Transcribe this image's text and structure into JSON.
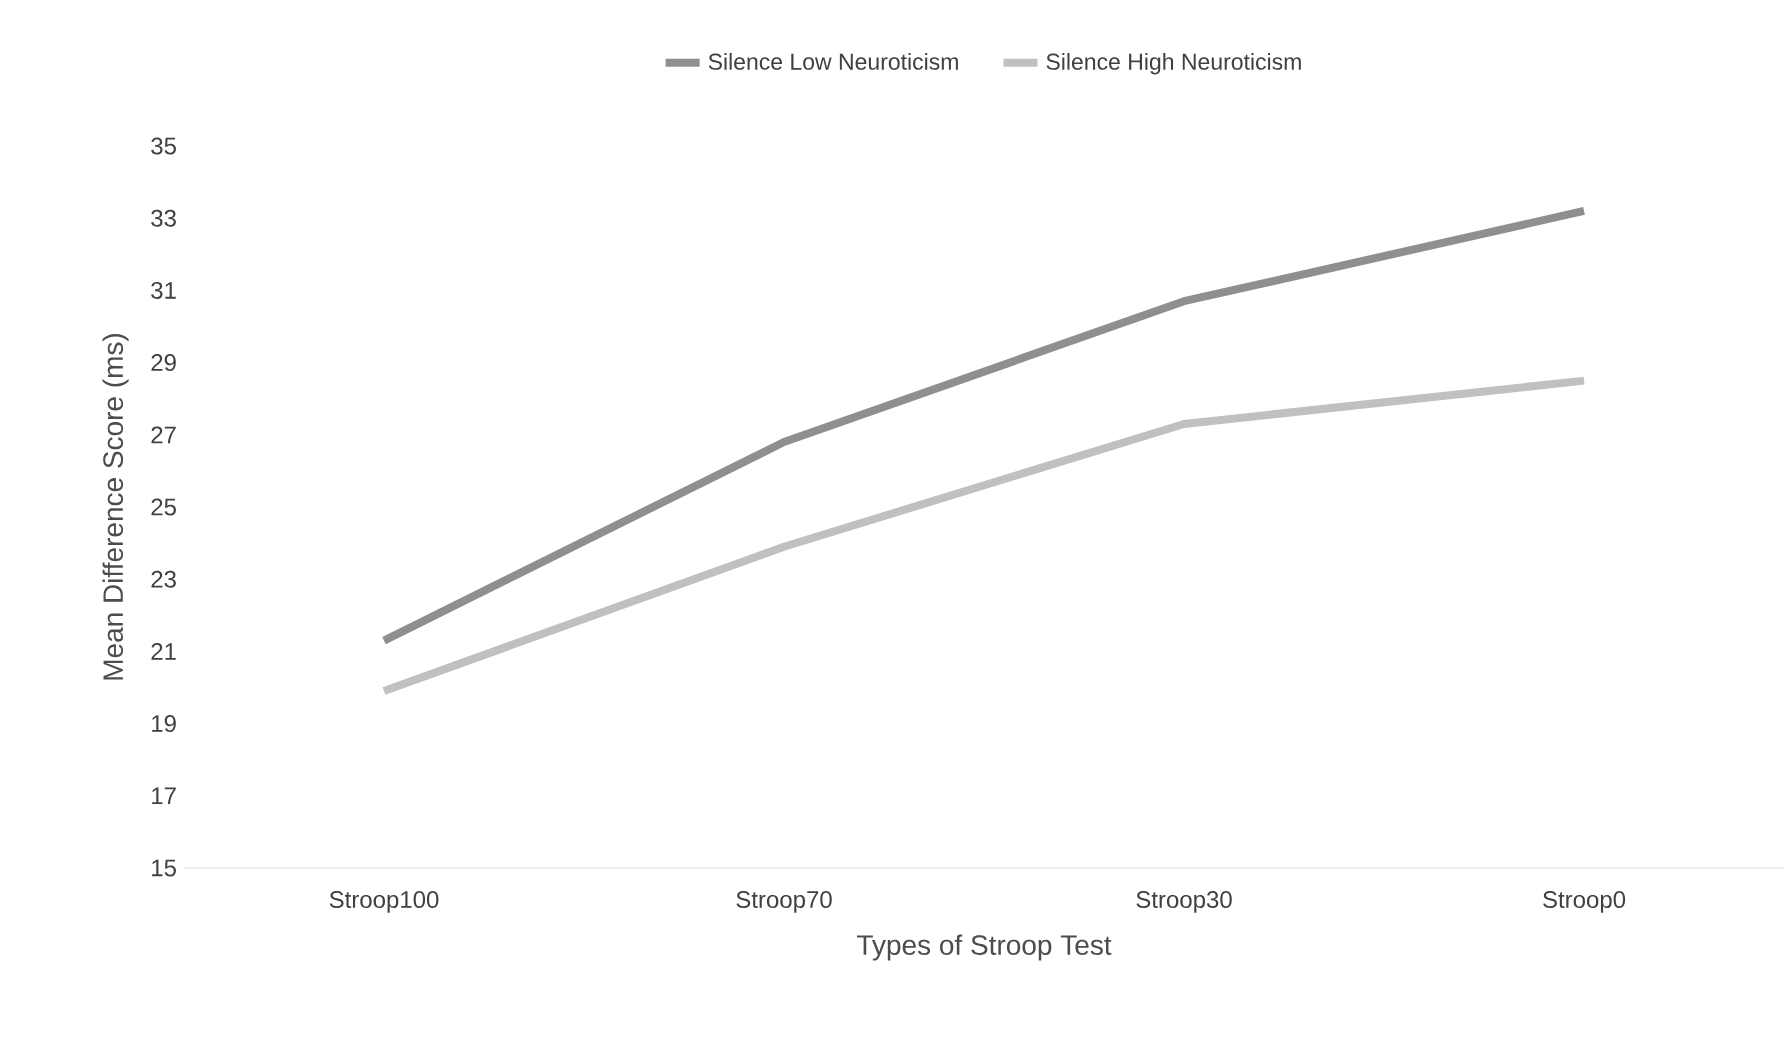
{
  "chart_data": {
    "type": "line",
    "xlabel": "Types of Stroop Test",
    "ylabel": "Mean Difference Score (ms)",
    "categories": [
      "Stroop100",
      "Stroop70",
      "Stroop30",
      "Stroop0"
    ],
    "series": [
      {
        "name": "Silence Low Neuroticism",
        "color": "#8f8f8f",
        "values": [
          21.3,
          26.8,
          30.7,
          33.2
        ]
      },
      {
        "name": "Silence High Neuroticism",
        "color": "#c0c0c0",
        "values": [
          19.9,
          23.9,
          27.3,
          28.5
        ]
      }
    ],
    "ylim": [
      15,
      35
    ],
    "yticks": [
      15,
      17,
      19,
      21,
      23,
      25,
      27,
      29,
      31,
      33,
      35
    ],
    "grid": false,
    "legend": "top",
    "marker": "none",
    "line_style": "solid"
  }
}
